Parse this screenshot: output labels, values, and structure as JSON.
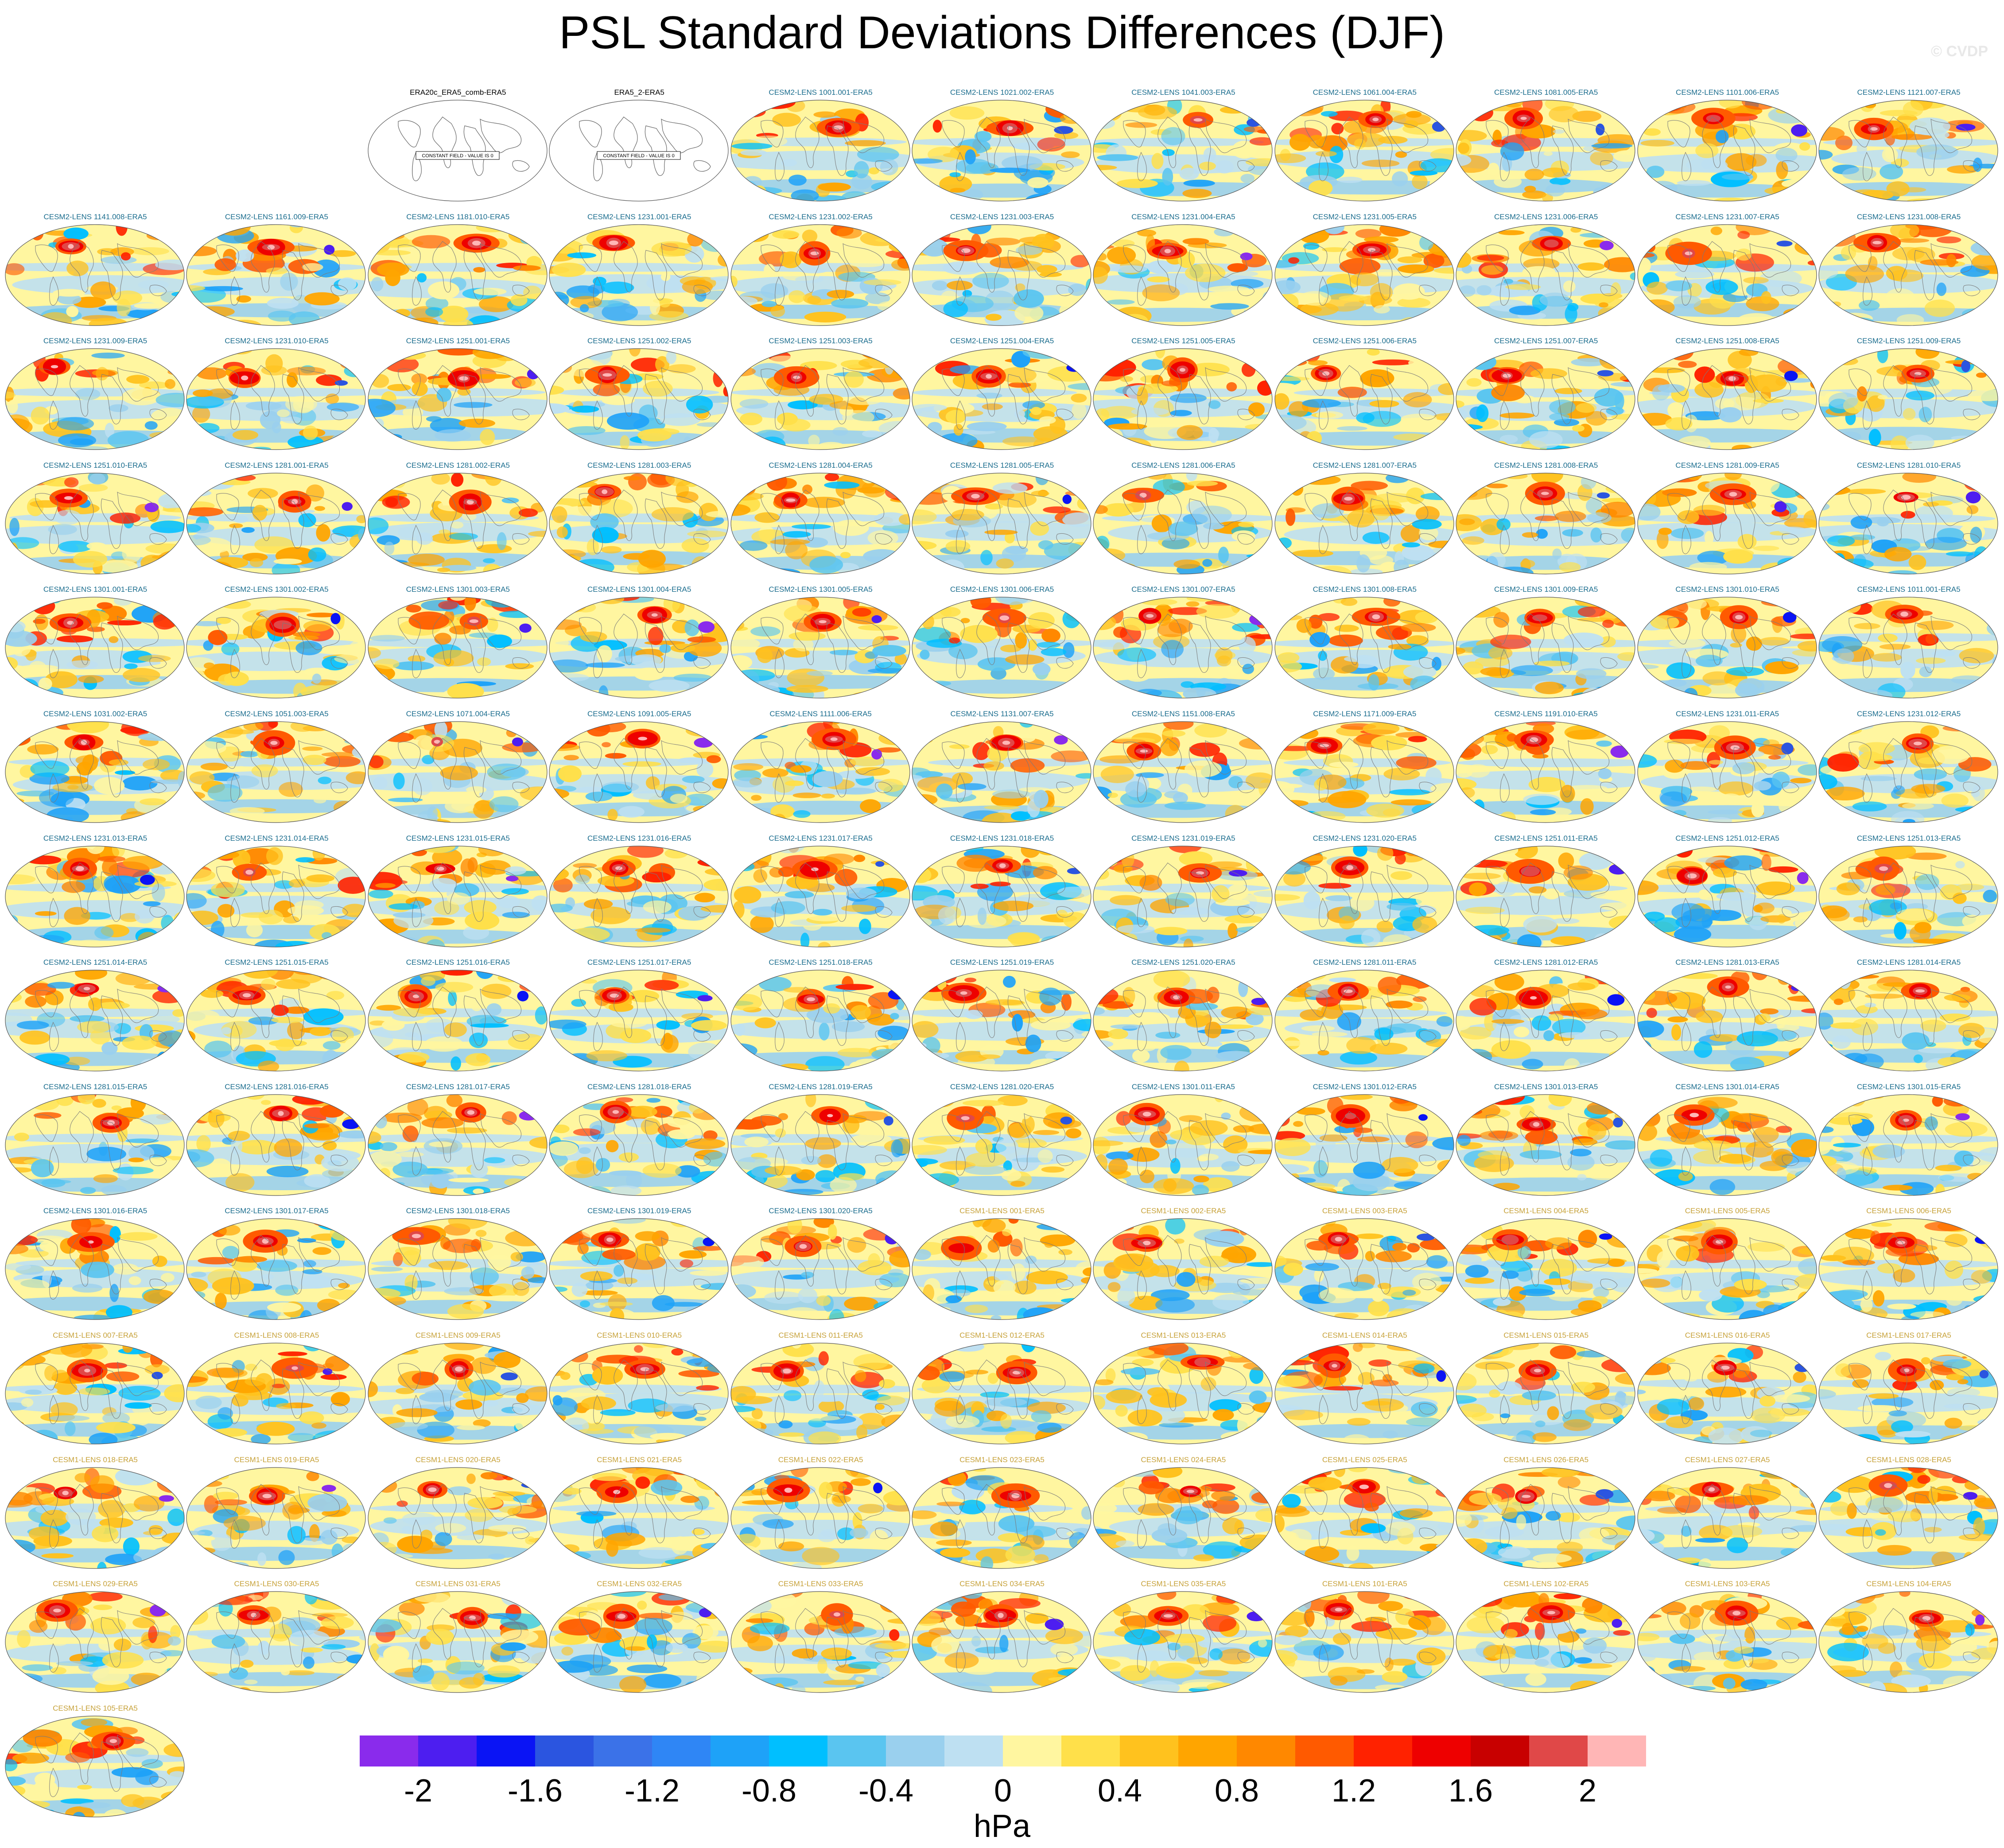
{
  "title": "PSL Standard Deviations Differences (DJF)",
  "watermark": "© CVDP",
  "colorbar": {
    "units": "hPa",
    "tick_labels": [
      "-2",
      "-1.6",
      "-1.2",
      "-0.8",
      "-0.4",
      "0",
      "0.4",
      "0.8",
      "1.2",
      "1.6",
      "2"
    ],
    "colors": [
      "#8a2bec",
      "#4d1ef0",
      "#0a14f5",
      "#2b55e0",
      "#3b72e8",
      "#2f86f5",
      "#1ea2f8",
      "#00bfff",
      "#5ac5f0",
      "#9ad0ee",
      "#bee0f2",
      "#fff6a0",
      "#ffe04a",
      "#ffc21e",
      "#ffa500",
      "#ff8800",
      "#ff5a00",
      "#ff2200",
      "#ee0000",
      "#c80000",
      "#e04848",
      "#ffb6b6"
    ],
    "range": [
      -2.2,
      2.2
    ],
    "step": 0.2
  },
  "panel_label_colors": {
    "observations": "#000000",
    "cesm2": "#1b6d8e",
    "cesm1": "#c7a23a"
  },
  "panels": [
    {
      "label": "ERA20c_ERA5_comb-ERA5",
      "group": "observations",
      "constant": true
    },
    {
      "label": "ERA5_2-ERA5",
      "group": "observations",
      "constant": true
    },
    {
      "label": "CESM2-LENS 1001.001-ERA5",
      "group": "cesm2"
    },
    {
      "label": "CESM2-LENS 1021.002-ERA5",
      "group": "cesm2"
    },
    {
      "label": "CESM2-LENS 1041.003-ERA5",
      "group": "cesm2"
    },
    {
      "label": "CESM2-LENS 1061.004-ERA5",
      "group": "cesm2"
    },
    {
      "label": "CESM2-LENS 1081.005-ERA5",
      "group": "cesm2"
    },
    {
      "label": "CESM2-LENS 1101.006-ERA5",
      "group": "cesm2"
    },
    {
      "label": "CESM2-LENS 1121.007-ERA5",
      "group": "cesm2"
    },
    {
      "label": "CESM2-LENS 1141.008-ERA5",
      "group": "cesm2"
    },
    {
      "label": "CESM2-LENS 1161.009-ERA5",
      "group": "cesm2"
    },
    {
      "label": "CESM2-LENS 1181.010-ERA5",
      "group": "cesm2"
    },
    {
      "label": "CESM2-LENS 1231.001-ERA5",
      "group": "cesm2"
    },
    {
      "label": "CESM2-LENS 1231.002-ERA5",
      "group": "cesm2"
    },
    {
      "label": "CESM2-LENS 1231.003-ERA5",
      "group": "cesm2"
    },
    {
      "label": "CESM2-LENS 1231.004-ERA5",
      "group": "cesm2"
    },
    {
      "label": "CESM2-LENS 1231.005-ERA5",
      "group": "cesm2"
    },
    {
      "label": "CESM2-LENS 1231.006-ERA5",
      "group": "cesm2"
    },
    {
      "label": "CESM2-LENS 1231.007-ERA5",
      "group": "cesm2"
    },
    {
      "label": "CESM2-LENS 1231.008-ERA5",
      "group": "cesm2"
    },
    {
      "label": "CESM2-LENS 1231.009-ERA5",
      "group": "cesm2"
    },
    {
      "label": "CESM2-LENS 1231.010-ERA5",
      "group": "cesm2"
    },
    {
      "label": "CESM2-LENS 1251.001-ERA5",
      "group": "cesm2"
    },
    {
      "label": "CESM2-LENS 1251.002-ERA5",
      "group": "cesm2"
    },
    {
      "label": "CESM2-LENS 1251.003-ERA5",
      "group": "cesm2"
    },
    {
      "label": "CESM2-LENS 1251.004-ERA5",
      "group": "cesm2"
    },
    {
      "label": "CESM2-LENS 1251.005-ERA5",
      "group": "cesm2"
    },
    {
      "label": "CESM2-LENS 1251.006-ERA5",
      "group": "cesm2"
    },
    {
      "label": "CESM2-LENS 1251.007-ERA5",
      "group": "cesm2"
    },
    {
      "label": "CESM2-LENS 1251.008-ERA5",
      "group": "cesm2"
    },
    {
      "label": "CESM2-LENS 1251.009-ERA5",
      "group": "cesm2"
    },
    {
      "label": "CESM2-LENS 1251.010-ERA5",
      "group": "cesm2"
    },
    {
      "label": "CESM2-LENS 1281.001-ERA5",
      "group": "cesm2"
    },
    {
      "label": "CESM2-LENS 1281.002-ERA5",
      "group": "cesm2"
    },
    {
      "label": "CESM2-LENS 1281.003-ERA5",
      "group": "cesm2"
    },
    {
      "label": "CESM2-LENS 1281.004-ERA5",
      "group": "cesm2"
    },
    {
      "label": "CESM2-LENS 1281.005-ERA5",
      "group": "cesm2"
    },
    {
      "label": "CESM2-LENS 1281.006-ERA5",
      "group": "cesm2"
    },
    {
      "label": "CESM2-LENS 1281.007-ERA5",
      "group": "cesm2"
    },
    {
      "label": "CESM2-LENS 1281.008-ERA5",
      "group": "cesm2"
    },
    {
      "label": "CESM2-LENS 1281.009-ERA5",
      "group": "cesm2"
    },
    {
      "label": "CESM2-LENS 1281.010-ERA5",
      "group": "cesm2"
    },
    {
      "label": "CESM2-LENS 1301.001-ERA5",
      "group": "cesm2"
    },
    {
      "label": "CESM2-LENS 1301.002-ERA5",
      "group": "cesm2"
    },
    {
      "label": "CESM2-LENS 1301.003-ERA5",
      "group": "cesm2"
    },
    {
      "label": "CESM2-LENS 1301.004-ERA5",
      "group": "cesm2"
    },
    {
      "label": "CESM2-LENS 1301.005-ERA5",
      "group": "cesm2"
    },
    {
      "label": "CESM2-LENS 1301.006-ERA5",
      "group": "cesm2"
    },
    {
      "label": "CESM2-LENS 1301.007-ERA5",
      "group": "cesm2"
    },
    {
      "label": "CESM2-LENS 1301.008-ERA5",
      "group": "cesm2"
    },
    {
      "label": "CESM2-LENS 1301.009-ERA5",
      "group": "cesm2"
    },
    {
      "label": "CESM2-LENS 1301.010-ERA5",
      "group": "cesm2"
    },
    {
      "label": "CESM2-LENS 1011.001-ERA5",
      "group": "cesm2"
    },
    {
      "label": "CESM2-LENS 1031.002-ERA5",
      "group": "cesm2"
    },
    {
      "label": "CESM2-LENS 1051.003-ERA5",
      "group": "cesm2"
    },
    {
      "label": "CESM2-LENS 1071.004-ERA5",
      "group": "cesm2"
    },
    {
      "label": "CESM2-LENS 1091.005-ERA5",
      "group": "cesm2"
    },
    {
      "label": "CESM2-LENS 1111.006-ERA5",
      "group": "cesm2"
    },
    {
      "label": "CESM2-LENS 1131.007-ERA5",
      "group": "cesm2"
    },
    {
      "label": "CESM2-LENS 1151.008-ERA5",
      "group": "cesm2"
    },
    {
      "label": "CESM2-LENS 1171.009-ERA5",
      "group": "cesm2"
    },
    {
      "label": "CESM2-LENS 1191.010-ERA5",
      "group": "cesm2"
    },
    {
      "label": "CESM2-LENS 1231.011-ERA5",
      "group": "cesm2"
    },
    {
      "label": "CESM2-LENS 1231.012-ERA5",
      "group": "cesm2"
    },
    {
      "label": "CESM2-LENS 1231.013-ERA5",
      "group": "cesm2"
    },
    {
      "label": "CESM2-LENS 1231.014-ERA5",
      "group": "cesm2"
    },
    {
      "label": "CESM2-LENS 1231.015-ERA5",
      "group": "cesm2"
    },
    {
      "label": "CESM2-LENS 1231.016-ERA5",
      "group": "cesm2"
    },
    {
      "label": "CESM2-LENS 1231.017-ERA5",
      "group": "cesm2"
    },
    {
      "label": "CESM2-LENS 1231.018-ERA5",
      "group": "cesm2"
    },
    {
      "label": "CESM2-LENS 1231.019-ERA5",
      "group": "cesm2"
    },
    {
      "label": "CESM2-LENS 1231.020-ERA5",
      "group": "cesm2"
    },
    {
      "label": "CESM2-LENS 1251.011-ERA5",
      "group": "cesm2"
    },
    {
      "label": "CESM2-LENS 1251.012-ERA5",
      "group": "cesm2"
    },
    {
      "label": "CESM2-LENS 1251.013-ERA5",
      "group": "cesm2"
    },
    {
      "label": "CESM2-LENS 1251.014-ERA5",
      "group": "cesm2"
    },
    {
      "label": "CESM2-LENS 1251.015-ERA5",
      "group": "cesm2"
    },
    {
      "label": "CESM2-LENS 1251.016-ERA5",
      "group": "cesm2"
    },
    {
      "label": "CESM2-LENS 1251.017-ERA5",
      "group": "cesm2"
    },
    {
      "label": "CESM2-LENS 1251.018-ERA5",
      "group": "cesm2"
    },
    {
      "label": "CESM2-LENS 1251.019-ERA5",
      "group": "cesm2"
    },
    {
      "label": "CESM2-LENS 1251.020-ERA5",
      "group": "cesm2"
    },
    {
      "label": "CESM2-LENS 1281.011-ERA5",
      "group": "cesm2"
    },
    {
      "label": "CESM2-LENS 1281.012-ERA5",
      "group": "cesm2"
    },
    {
      "label": "CESM2-LENS 1281.013-ERA5",
      "group": "cesm2"
    },
    {
      "label": "CESM2-LENS 1281.014-ERA5",
      "group": "cesm2"
    },
    {
      "label": "CESM2-LENS 1281.015-ERA5",
      "group": "cesm2"
    },
    {
      "label": "CESM2-LENS 1281.016-ERA5",
      "group": "cesm2"
    },
    {
      "label": "CESM2-LENS 1281.017-ERA5",
      "group": "cesm2"
    },
    {
      "label": "CESM2-LENS 1281.018-ERA5",
      "group": "cesm2"
    },
    {
      "label": "CESM2-LENS 1281.019-ERA5",
      "group": "cesm2"
    },
    {
      "label": "CESM2-LENS 1281.020-ERA5",
      "group": "cesm2"
    },
    {
      "label": "CESM2-LENS 1301.011-ERA5",
      "group": "cesm2"
    },
    {
      "label": "CESM2-LENS 1301.012-ERA5",
      "group": "cesm2"
    },
    {
      "label": "CESM2-LENS 1301.013-ERA5",
      "group": "cesm2"
    },
    {
      "label": "CESM2-LENS 1301.014-ERA5",
      "group": "cesm2"
    },
    {
      "label": "CESM2-LENS 1301.015-ERA5",
      "group": "cesm2"
    },
    {
      "label": "CESM2-LENS 1301.016-ERA5",
      "group": "cesm2"
    },
    {
      "label": "CESM2-LENS 1301.017-ERA5",
      "group": "cesm2"
    },
    {
      "label": "CESM2-LENS 1301.018-ERA5",
      "group": "cesm2"
    },
    {
      "label": "CESM2-LENS 1301.019-ERA5",
      "group": "cesm2"
    },
    {
      "label": "CESM2-LENS 1301.020-ERA5",
      "group": "cesm2"
    },
    {
      "label": "CESM1-LENS 001-ERA5",
      "group": "cesm1"
    },
    {
      "label": "CESM1-LENS 002-ERA5",
      "group": "cesm1"
    },
    {
      "label": "CESM1-LENS 003-ERA5",
      "group": "cesm1"
    },
    {
      "label": "CESM1-LENS 004-ERA5",
      "group": "cesm1"
    },
    {
      "label": "CESM1-LENS 005-ERA5",
      "group": "cesm1"
    },
    {
      "label": "CESM1-LENS 006-ERA5",
      "group": "cesm1"
    },
    {
      "label": "CESM1-LENS 007-ERA5",
      "group": "cesm1"
    },
    {
      "label": "CESM1-LENS 008-ERA5",
      "group": "cesm1"
    },
    {
      "label": "CESM1-LENS 009-ERA5",
      "group": "cesm1"
    },
    {
      "label": "CESM1-LENS 010-ERA5",
      "group": "cesm1"
    },
    {
      "label": "CESM1-LENS 011-ERA5",
      "group": "cesm1"
    },
    {
      "label": "CESM1-LENS 012-ERA5",
      "group": "cesm1"
    },
    {
      "label": "CESM1-LENS 013-ERA5",
      "group": "cesm1"
    },
    {
      "label": "CESM1-LENS 014-ERA5",
      "group": "cesm1"
    },
    {
      "label": "CESM1-LENS 015-ERA5",
      "group": "cesm1"
    },
    {
      "label": "CESM1-LENS 016-ERA5",
      "group": "cesm1"
    },
    {
      "label": "CESM1-LENS 017-ERA5",
      "group": "cesm1"
    },
    {
      "label": "CESM1-LENS 018-ERA5",
      "group": "cesm1"
    },
    {
      "label": "CESM1-LENS 019-ERA5",
      "group": "cesm1"
    },
    {
      "label": "CESM1-LENS 020-ERA5",
      "group": "cesm1"
    },
    {
      "label": "CESM1-LENS 021-ERA5",
      "group": "cesm1"
    },
    {
      "label": "CESM1-LENS 022-ERA5",
      "group": "cesm1"
    },
    {
      "label": "CESM1-LENS 023-ERA5",
      "group": "cesm1"
    },
    {
      "label": "CESM1-LENS 024-ERA5",
      "group": "cesm1"
    },
    {
      "label": "CESM1-LENS 025-ERA5",
      "group": "cesm1"
    },
    {
      "label": "CESM1-LENS 026-ERA5",
      "group": "cesm1"
    },
    {
      "label": "CESM1-LENS 027-ERA5",
      "group": "cesm1"
    },
    {
      "label": "CESM1-LENS 028-ERA5",
      "group": "cesm1"
    },
    {
      "label": "CESM1-LENS 029-ERA5",
      "group": "cesm1"
    },
    {
      "label": "CESM1-LENS 030-ERA5",
      "group": "cesm1"
    },
    {
      "label": "CESM1-LENS 031-ERA5",
      "group": "cesm1"
    },
    {
      "label": "CESM1-LENS 032-ERA5",
      "group": "cesm1"
    },
    {
      "label": "CESM1-LENS 033-ERA5",
      "group": "cesm1"
    },
    {
      "label": "CESM1-LENS 034-ERA5",
      "group": "cesm1"
    },
    {
      "label": "CESM1-LENS 035-ERA5",
      "group": "cesm1"
    },
    {
      "label": "CESM1-LENS 101-ERA5",
      "group": "cesm1"
    },
    {
      "label": "CESM1-LENS 102-ERA5",
      "group": "cesm1"
    },
    {
      "label": "CESM1-LENS 103-ERA5",
      "group": "cesm1"
    },
    {
      "label": "CESM1-LENS 104-ERA5",
      "group": "cesm1"
    },
    {
      "label": "CESM1-LENS 105-ERA5",
      "group": "cesm1"
    }
  ],
  "constant_field_text": "CONSTANT FIELD - VALUE IS 0"
}
